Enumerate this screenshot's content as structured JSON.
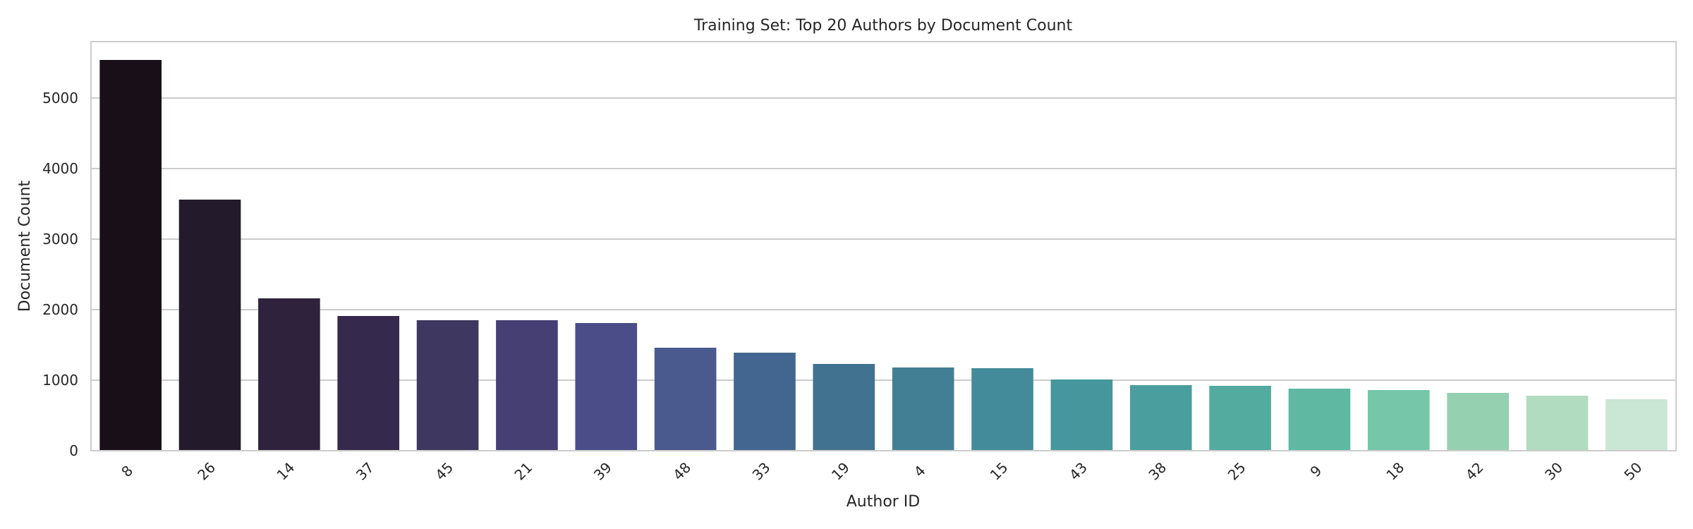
{
  "chart_data": {
    "type": "bar",
    "title": "Training Set: Top 20 Authors by Document Count",
    "xlabel": "Author ID",
    "ylabel": "Document Count",
    "categories": [
      "8",
      "26",
      "14",
      "37",
      "45",
      "21",
      "39",
      "48",
      "33",
      "19",
      "4",
      "15",
      "43",
      "38",
      "25",
      "9",
      "18",
      "42",
      "30",
      "50"
    ],
    "values": [
      5540,
      3560,
      2160,
      1910,
      1850,
      1850,
      1810,
      1460,
      1390,
      1230,
      1180,
      1170,
      1010,
      930,
      920,
      880,
      860,
      820,
      780,
      730
    ],
    "ylim": [
      0,
      5800
    ],
    "yticks": [
      0,
      1000,
      2000,
      3000,
      4000,
      5000
    ],
    "grid": "horizontal",
    "legend": "none",
    "colors": [
      "#180f18",
      "#231a2b",
      "#2e223c",
      "#352a4d",
      "#3e375f",
      "#453f74",
      "#4b4d89",
      "#4a5a8f",
      "#42668f",
      "#41728f",
      "#427f94",
      "#438b9a",
      "#45969d",
      "#4a9f9e",
      "#52ab9e",
      "#5fb9a2",
      "#76c6a9",
      "#95d0b1",
      "#b2dcbf",
      "#cae6d5"
    ]
  }
}
